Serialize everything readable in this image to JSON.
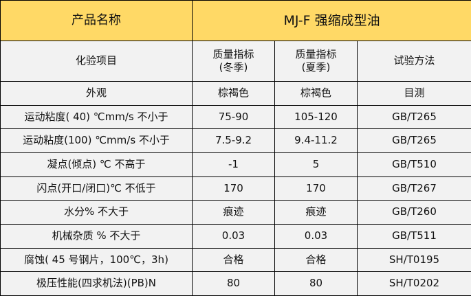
{
  "colors": {
    "title_row_bg": "#ffd966",
    "body_bg": "#f2f2f2",
    "border": "#000000"
  },
  "title_row": {
    "label": "产品名称",
    "product": "MJ-F 强缩成型油"
  },
  "header": {
    "item": "化验项目",
    "winter_l1": "质量指标",
    "winter_l2": "(冬季)",
    "summer_l1": "质量指标",
    "summer_l2": "(夏季)",
    "method": "试验方法"
  },
  "rows": [
    {
      "item": "外观",
      "winter": "棕褐色",
      "summer": "棕褐色",
      "method": "目测"
    },
    {
      "item": "运动粘度( 40) ℃mm/s  不小于",
      "winter": "75-90",
      "summer": "105-120",
      "method": "GB/T265"
    },
    {
      "item": "运动粘度(100) ℃mm/s  不小于",
      "winter": "7.5-9.2",
      "summer": "9.4-11.2",
      "method": "GB/T265"
    },
    {
      "item": "凝点(倾点) ℃   不高于",
      "winter": "-1",
      "summer": "5",
      "method": "GB/T510"
    },
    {
      "item": "闪点(开口/闭口)℃  不低于",
      "winter": "170",
      "summer": "170",
      "method": "GB/T267"
    },
    {
      "item": "水分%  不大于",
      "winter": "痕迹",
      "summer": "痕迹",
      "method": "GB/T260"
    },
    {
      "item": "机械杂质  %    不大于",
      "winter": "0.03",
      "summer": "0.03",
      "method": "GB/T511"
    },
    {
      "item": "腐蚀( 45 号钢片，100℃，3h)",
      "winter": "合格",
      "summer": "合格",
      "method": "SH/T0195"
    },
    {
      "item": "极压性能(四求机法)(PB)N",
      "winter": "80",
      "summer": "80",
      "method": "SH/T0202"
    }
  ]
}
